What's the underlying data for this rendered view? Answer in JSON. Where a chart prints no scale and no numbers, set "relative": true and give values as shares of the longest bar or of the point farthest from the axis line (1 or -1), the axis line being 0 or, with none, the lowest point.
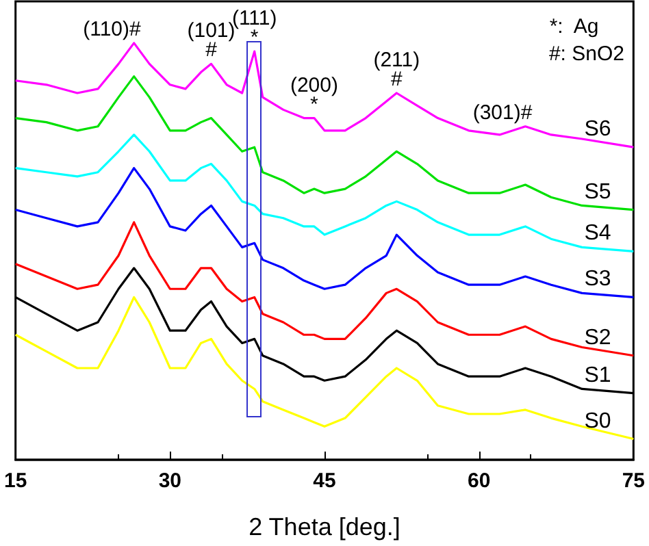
{
  "chart_data": {
    "type": "line",
    "relative": true,
    "xlabel": "2 Theta [deg.]",
    "xlim": [
      15,
      75
    ],
    "xticks": [
      15,
      30,
      45,
      60,
      75
    ],
    "marker": "none",
    "x": [
      15,
      18,
      21,
      23,
      25,
      26.5,
      28,
      30,
      31.5,
      33,
      34,
      35.5,
      37,
      38.2,
      39,
      41,
      43,
      44,
      45,
      47,
      49,
      51,
      52,
      54,
      56,
      59,
      62,
      64.5,
      67,
      70,
      75
    ],
    "series": [
      {
        "name": "S6",
        "color": "#ff00ff",
        "values": [
          0.91,
          0.9,
          0.88,
          0.89,
          0.95,
          1,
          0.95,
          0.9,
          0.89,
          0.93,
          0.95,
          0.9,
          0.88,
          0.98,
          0.87,
          0.84,
          0.82,
          0.82,
          0.79,
          0.79,
          0.82,
          0.86,
          0.88,
          0.85,
          0.82,
          0.79,
          0.78,
          0.8,
          0.78,
          0.77,
          0.75
        ]
      },
      {
        "name": "S5",
        "color": "#00e000",
        "values": [
          0.82,
          0.81,
          0.79,
          0.8,
          0.87,
          0.92,
          0.87,
          0.79,
          0.79,
          0.81,
          0.82,
          0.78,
          0.74,
          0.75,
          0.69,
          0.67,
          0.64,
          0.65,
          0.64,
          0.65,
          0.68,
          0.72,
          0.74,
          0.71,
          0.67,
          0.64,
          0.64,
          0.66,
          0.63,
          0.61,
          0.6
        ]
      },
      {
        "name": "S4",
        "color": "#00ffff",
        "values": [
          0.7,
          0.69,
          0.68,
          0.69,
          0.74,
          0.78,
          0.74,
          0.67,
          0.67,
          0.7,
          0.71,
          0.67,
          0.62,
          0.61,
          0.59,
          0.58,
          0.56,
          0.56,
          0.54,
          0.56,
          0.58,
          0.61,
          0.62,
          0.6,
          0.57,
          0.54,
          0.54,
          0.56,
          0.53,
          0.51,
          0.5
        ]
      },
      {
        "name": "S3",
        "color": "#0000ff",
        "values": [
          0.6,
          0.58,
          0.56,
          0.57,
          0.64,
          0.7,
          0.65,
          0.56,
          0.55,
          0.59,
          0.61,
          0.56,
          0.51,
          0.52,
          0.48,
          0.46,
          0.43,
          0.42,
          0.41,
          0.42,
          0.46,
          0.49,
          0.54,
          0.49,
          0.45,
          0.42,
          0.42,
          0.44,
          0.42,
          0.4,
          0.39
        ]
      },
      {
        "name": "S2",
        "color": "#ff0000",
        "values": [
          0.47,
          0.44,
          0.41,
          0.42,
          0.49,
          0.57,
          0.49,
          0.41,
          0.41,
          0.46,
          0.46,
          0.41,
          0.38,
          0.39,
          0.35,
          0.33,
          0.3,
          0.3,
          0.29,
          0.29,
          0.34,
          0.4,
          0.41,
          0.38,
          0.33,
          0.3,
          0.3,
          0.32,
          0.29,
          0.27,
          0.25
        ]
      },
      {
        "name": "S1",
        "color": "#000000",
        "values": [
          0.39,
          0.35,
          0.31,
          0.33,
          0.41,
          0.46,
          0.41,
          0.31,
          0.31,
          0.36,
          0.38,
          0.32,
          0.28,
          0.29,
          0.25,
          0.23,
          0.2,
          0.2,
          0.19,
          0.2,
          0.24,
          0.29,
          0.31,
          0.28,
          0.23,
          0.2,
          0.2,
          0.22,
          0.2,
          0.17,
          0.16
        ]
      },
      {
        "name": "S0",
        "color": "#ffff00",
        "values": [
          0.3,
          0.26,
          0.22,
          0.22,
          0.31,
          0.39,
          0.33,
          0.22,
          0.22,
          0.28,
          0.29,
          0.23,
          0.19,
          0.17,
          0.14,
          0.12,
          0.1,
          0.09,
          0.08,
          0.1,
          0.15,
          0.2,
          0.22,
          0.19,
          0.13,
          0.11,
          0.11,
          0.12,
          0.1,
          0.08,
          0.05
        ]
      }
    ],
    "annotations": [
      {
        "text": "(110)#",
        "x": 26.5,
        "y": 1
      },
      {
        "text": "(101)\n#",
        "x": 34,
        "y": 0.95
      },
      {
        "text": "(111)\n*",
        "x": 38.2,
        "y": 0.98
      },
      {
        "text": "(200)\n*",
        "x": 44,
        "y": 0.82
      },
      {
        "text": "(211)\n#",
        "x": 52,
        "y": 0.88
      },
      {
        "text": "(301)#",
        "x": 64.5,
        "y": 0.8
      },
      "*:  Ag",
      "#: SnO2"
    ]
  }
}
